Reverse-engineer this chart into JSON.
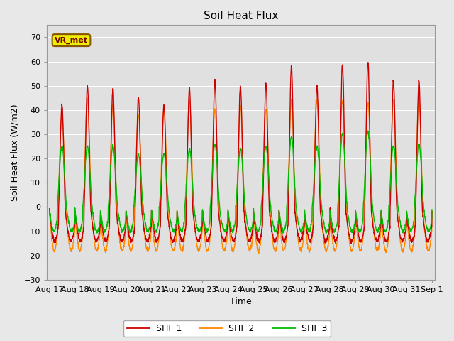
{
  "title": "Soil Heat Flux",
  "xlabel": "Time",
  "ylabel": "Soil Heat Flux (W/m2)",
  "ylim": [
    -30,
    75
  ],
  "yticks": [
    -30,
    -20,
    -10,
    0,
    10,
    20,
    30,
    40,
    50,
    60,
    70
  ],
  "colors": {
    "SHF 1": "#cc0000",
    "SHF 2": "#ff8800",
    "SHF 3": "#00bb00"
  },
  "fig_bg_color": "#e8e8e8",
  "plot_bg_color": "#e0e0e0",
  "annotation_text": "VR_met",
  "annotation_bg": "#eeee00",
  "annotation_border": "#885500",
  "date_labels": [
    "Aug 17",
    "Aug 18",
    "Aug 19",
    "Aug 20",
    "Aug 21",
    "Aug 22",
    "Aug 23",
    "Aug 24",
    "Aug 25",
    "Aug 26",
    "Aug 27",
    "Aug 28",
    "Aug 29",
    "Aug 30",
    "Aug 31",
    "Sep 1"
  ],
  "n_days": 15,
  "points_per_day": 144
}
